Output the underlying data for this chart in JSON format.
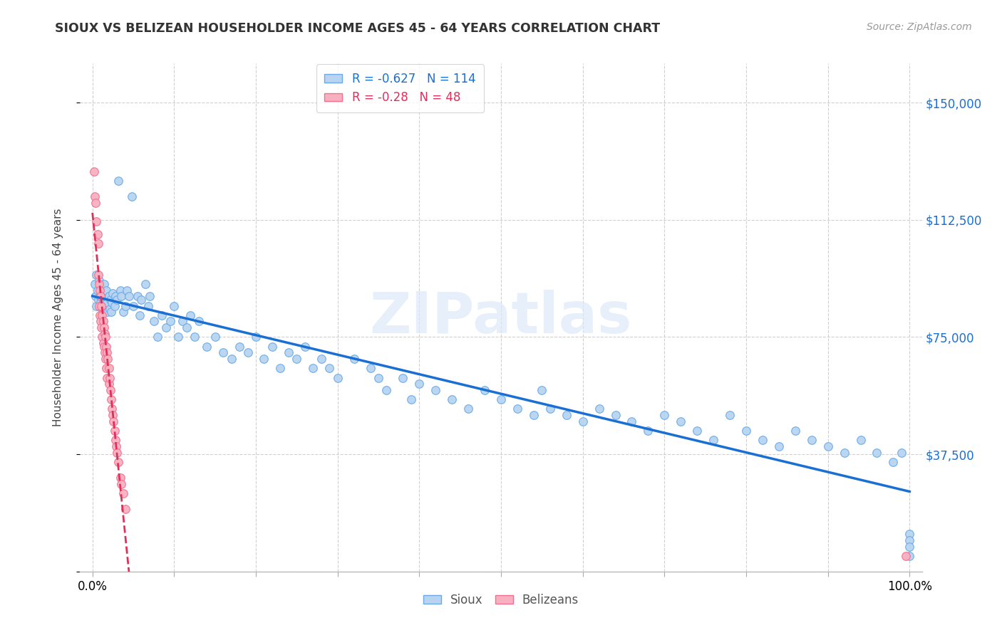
{
  "title": "SIOUX VS BELIZEAN HOUSEHOLDER INCOME AGES 45 - 64 YEARS CORRELATION CHART",
  "source": "Source: ZipAtlas.com",
  "ylabel": "Householder Income Ages 45 - 64 years",
  "sioux_R": -0.627,
  "sioux_N": 114,
  "belizean_R": -0.28,
  "belizean_N": 48,
  "sioux_color": "#b8d4f0",
  "sioux_edge_color": "#6aaae8",
  "sioux_line_color": "#1a6fd4",
  "belizean_color": "#f8b0c0",
  "belizean_edge_color": "#f07090",
  "belizean_line_color": "#e0305a",
  "watermark": "ZIPatlas",
  "watermark_color": "#dde8f5",
  "ylim": [
    0,
    162500
  ],
  "xlim": [
    -0.015,
    1.015
  ],
  "yticks": [
    0,
    37500,
    75000,
    112500,
    150000
  ],
  "ytick_labels": [
    "",
    "$37,500",
    "$75,000",
    "$112,500",
    "$150,000"
  ],
  "xticks": [
    0.0,
    0.1,
    0.2,
    0.3,
    0.4,
    0.5,
    0.6,
    0.7,
    0.8,
    0.9,
    1.0
  ],
  "xtick_labels": [
    "0.0%",
    "",
    "",
    "",
    "",
    "",
    "",
    "",
    "",
    "",
    "100.0%"
  ],
  "background_color": "#ffffff",
  "sioux_x": [
    0.003,
    0.004,
    0.005,
    0.005,
    0.006,
    0.007,
    0.008,
    0.009,
    0.01,
    0.01,
    0.011,
    0.012,
    0.013,
    0.014,
    0.015,
    0.016,
    0.017,
    0.018,
    0.019,
    0.02,
    0.021,
    0.022,
    0.023,
    0.024,
    0.025,
    0.027,
    0.028,
    0.03,
    0.032,
    0.034,
    0.035,
    0.038,
    0.04,
    0.042,
    0.045,
    0.048,
    0.05,
    0.055,
    0.058,
    0.06,
    0.065,
    0.068,
    0.07,
    0.075,
    0.08,
    0.085,
    0.09,
    0.095,
    0.1,
    0.105,
    0.11,
    0.115,
    0.12,
    0.125,
    0.13,
    0.14,
    0.15,
    0.16,
    0.17,
    0.18,
    0.19,
    0.2,
    0.21,
    0.22,
    0.23,
    0.24,
    0.25,
    0.26,
    0.27,
    0.28,
    0.29,
    0.3,
    0.32,
    0.34,
    0.35,
    0.36,
    0.38,
    0.39,
    0.4,
    0.42,
    0.44,
    0.46,
    0.48,
    0.5,
    0.52,
    0.54,
    0.55,
    0.56,
    0.58,
    0.6,
    0.62,
    0.64,
    0.66,
    0.68,
    0.7,
    0.72,
    0.74,
    0.76,
    0.78,
    0.8,
    0.82,
    0.84,
    0.86,
    0.88,
    0.9,
    0.92,
    0.94,
    0.96,
    0.98,
    0.99,
    1.0,
    1.0,
    1.0,
    1.0
  ],
  "sioux_y": [
    92000,
    88000,
    95000,
    85000,
    90000,
    87000,
    93000,
    88000,
    86000,
    91000,
    89000,
    84000,
    87000,
    92000,
    88000,
    85000,
    90000,
    86000,
    83000,
    88000,
    84000,
    87000,
    83000,
    86000,
    89000,
    85000,
    88000,
    87000,
    125000,
    90000,
    88000,
    83000,
    85000,
    90000,
    88000,
    120000,
    85000,
    88000,
    82000,
    87000,
    92000,
    85000,
    88000,
    80000,
    75000,
    82000,
    78000,
    80000,
    85000,
    75000,
    80000,
    78000,
    82000,
    75000,
    80000,
    72000,
    75000,
    70000,
    68000,
    72000,
    70000,
    75000,
    68000,
    72000,
    65000,
    70000,
    68000,
    72000,
    65000,
    68000,
    65000,
    62000,
    68000,
    65000,
    62000,
    58000,
    62000,
    55000,
    60000,
    58000,
    55000,
    52000,
    58000,
    55000,
    52000,
    50000,
    58000,
    52000,
    50000,
    48000,
    52000,
    50000,
    48000,
    45000,
    50000,
    48000,
    45000,
    42000,
    50000,
    45000,
    42000,
    40000,
    45000,
    42000,
    40000,
    38000,
    42000,
    38000,
    35000,
    38000,
    12000,
    10000,
    8000,
    5000
  ],
  "belizean_x": [
    0.002,
    0.003,
    0.004,
    0.005,
    0.006,
    0.007,
    0.007,
    0.008,
    0.008,
    0.009,
    0.009,
    0.01,
    0.01,
    0.011,
    0.011,
    0.012,
    0.012,
    0.013,
    0.013,
    0.014,
    0.014,
    0.015,
    0.015,
    0.016,
    0.016,
    0.017,
    0.017,
    0.018,
    0.018,
    0.019,
    0.02,
    0.02,
    0.021,
    0.022,
    0.023,
    0.024,
    0.025,
    0.026,
    0.027,
    0.028,
    0.029,
    0.03,
    0.032,
    0.034,
    0.035,
    0.038,
    0.04,
    0.995
  ],
  "belizean_y": [
    128000,
    120000,
    118000,
    112000,
    108000,
    105000,
    95000,
    92000,
    85000,
    90000,
    82000,
    88000,
    80000,
    85000,
    78000,
    82000,
    75000,
    80000,
    73000,
    78000,
    72000,
    76000,
    70000,
    75000,
    68000,
    72000,
    65000,
    70000,
    62000,
    68000,
    65000,
    60000,
    62000,
    58000,
    55000,
    52000,
    50000,
    48000,
    45000,
    42000,
    40000,
    38000,
    35000,
    30000,
    28000,
    25000,
    20000,
    5000
  ]
}
